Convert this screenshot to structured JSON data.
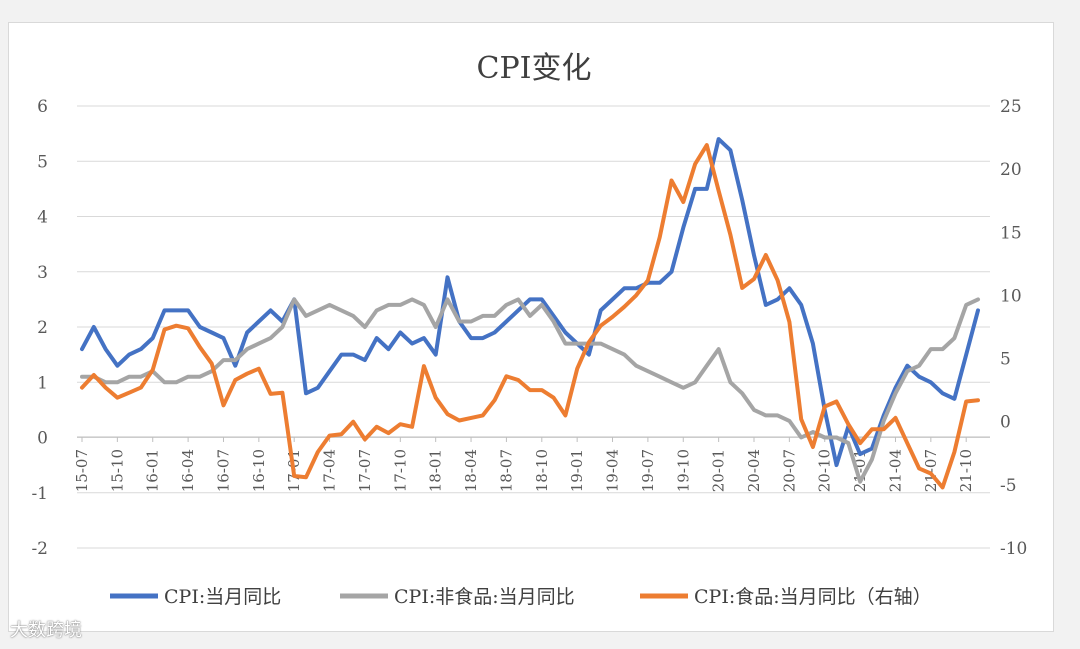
{
  "chart_data": {
    "type": "line",
    "title": "CPI变化",
    "x": [
      "15-07",
      "15-08",
      "15-09",
      "15-10",
      "15-11",
      "15-12",
      "16-01",
      "16-02",
      "16-03",
      "16-04",
      "16-05",
      "16-06",
      "16-07",
      "16-08",
      "16-09",
      "16-10",
      "16-11",
      "16-12",
      "17-01",
      "17-02",
      "17-03",
      "17-04",
      "17-05",
      "17-06",
      "17-07",
      "17-08",
      "17-09",
      "17-10",
      "17-11",
      "17-12",
      "18-01",
      "18-02",
      "18-03",
      "18-04",
      "18-05",
      "18-06",
      "18-07",
      "18-08",
      "18-09",
      "18-10",
      "18-11",
      "18-12",
      "19-01",
      "19-02",
      "19-03",
      "19-04",
      "19-05",
      "19-06",
      "19-07",
      "19-08",
      "19-09",
      "19-10",
      "19-11",
      "19-12",
      "20-01",
      "20-02",
      "20-03",
      "20-04",
      "20-05",
      "20-06",
      "20-07",
      "20-08",
      "20-09",
      "20-10",
      "20-11",
      "20-12",
      "21-01",
      "21-02",
      "21-03",
      "21-04",
      "21-05",
      "21-06",
      "21-07",
      "21-08",
      "21-09",
      "21-10",
      "21-11"
    ],
    "x_tick_labels": [
      "15-07",
      "15-10",
      "16-01",
      "16-04",
      "16-07",
      "16-10",
      "17-01",
      "17-04",
      "17-07",
      "17-10",
      "18-01",
      "18-04",
      "18-07",
      "18-10",
      "19-01",
      "19-04",
      "19-07",
      "19-10",
      "20-01",
      "20-04",
      "20-07",
      "20-10",
      "21-01",
      "21-04",
      "21-07",
      "21-10"
    ],
    "left_axis": {
      "ylim": [
        -2,
        6
      ],
      "ticks": [
        "-2",
        "-1",
        "0",
        "1",
        "2",
        "3",
        "4",
        "5",
        "6"
      ]
    },
    "right_axis": {
      "ylim": [
        -10,
        25
      ],
      "ticks": [
        "-10",
        "-5",
        "0",
        "5",
        "10",
        "15",
        "20",
        "25"
      ]
    },
    "grid": true,
    "legend": "bottom",
    "series": [
      {
        "name": "CPI:当月同比",
        "axis": "left",
        "color": "#4472c4",
        "values": [
          1.6,
          2.0,
          1.6,
          1.3,
          1.5,
          1.6,
          1.8,
          2.3,
          2.3,
          2.3,
          2.0,
          1.9,
          1.8,
          1.3,
          1.9,
          2.1,
          2.3,
          2.1,
          2.5,
          0.8,
          0.9,
          1.2,
          1.5,
          1.5,
          1.4,
          1.8,
          1.6,
          1.9,
          1.7,
          1.8,
          1.5,
          2.9,
          2.1,
          1.8,
          1.8,
          1.9,
          2.1,
          2.3,
          2.5,
          2.5,
          2.2,
          1.9,
          1.7,
          1.5,
          2.3,
          2.5,
          2.7,
          2.7,
          2.8,
          2.8,
          3.0,
          3.8,
          4.5,
          4.5,
          5.4,
          5.2,
          4.3,
          3.3,
          2.4,
          2.5,
          2.7,
          2.4,
          1.7,
          0.5,
          -0.5,
          0.2,
          -0.3,
          -0.2,
          0.4,
          0.9,
          1.3,
          1.1,
          1.0,
          0.8,
          0.7,
          1.5,
          2.3
        ]
      },
      {
        "name": "CPI:非食品:当月同比",
        "axis": "left",
        "color": "#a5a5a5",
        "values": [
          1.1,
          1.1,
          1.0,
          1.0,
          1.1,
          1.1,
          1.2,
          1.0,
          1.0,
          1.1,
          1.1,
          1.2,
          1.4,
          1.4,
          1.6,
          1.7,
          1.8,
          2.0,
          2.5,
          2.2,
          2.3,
          2.4,
          2.3,
          2.2,
          2.0,
          2.3,
          2.4,
          2.4,
          2.5,
          2.4,
          2.0,
          2.5,
          2.1,
          2.1,
          2.2,
          2.2,
          2.4,
          2.5,
          2.2,
          2.4,
          2.1,
          1.7,
          1.7,
          1.7,
          1.7,
          1.6,
          1.5,
          1.3,
          1.2,
          1.1,
          1.0,
          0.9,
          1.0,
          1.3,
          1.6,
          1.0,
          0.8,
          0.5,
          0.4,
          0.4,
          0.3,
          0.0,
          0.1,
          0.0,
          0.0,
          -0.1,
          -0.8,
          -0.4,
          0.3,
          0.8,
          1.2,
          1.3,
          1.6,
          1.6,
          1.8,
          2.4,
          2.5
        ]
      },
      {
        "name": "CPI:食品:当月同比（右轴）",
        "axis": "right",
        "color": "#ed7d31",
        "values": [
          2.7,
          3.7,
          2.7,
          1.9,
          2.3,
          2.7,
          4.1,
          7.3,
          7.6,
          7.4,
          5.9,
          4.6,
          1.3,
          3.3,
          3.8,
          4.2,
          2.2,
          2.3,
          -4.3,
          -4.4,
          -2.4,
          -1.1,
          -1.0,
          0.0,
          -1.4,
          -0.4,
          -0.9,
          -0.2,
          -0.4,
          4.4,
          1.9,
          0.6,
          0.1,
          0.3,
          0.5,
          1.7,
          3.6,
          3.3,
          2.5,
          2.5,
          1.9,
          0.5,
          4.2,
          6.3,
          7.6,
          8.3,
          9.1,
          10.0,
          11.2,
          14.6,
          19.1,
          17.4,
          20.4,
          21.9,
          18.3,
          14.8,
          10.6,
          11.3,
          13.2,
          11.2,
          7.9,
          0.2,
          -2.0,
          1.2,
          1.6,
          -0.2,
          -1.7,
          -0.6,
          -0.6,
          0.3,
          -1.7,
          -3.7,
          -4.1,
          -5.2,
          -2.4,
          1.6,
          1.7
        ]
      }
    ]
  },
  "watermark": "大数跨境"
}
